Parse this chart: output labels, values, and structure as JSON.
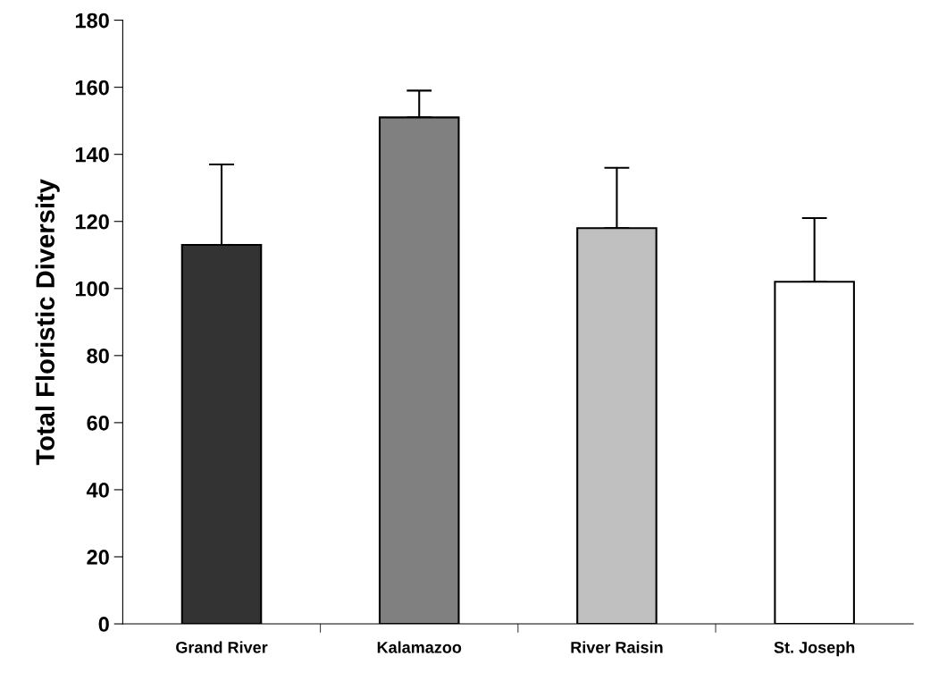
{
  "chart_data": {
    "type": "bar",
    "ylabel": "Total Floristic Diversity",
    "categories": [
      "Grand River",
      "Kalamazoo",
      "River Raisin",
      "St. Joseph"
    ],
    "values": [
      113,
      151,
      118,
      102
    ],
    "colors": [
      "#333333",
      "#808080",
      "#c0c0c0",
      "#ffffff"
    ],
    "errors": [
      [
        113,
        137
      ],
      [
        151,
        159
      ],
      [
        118,
        136
      ],
      [
        102,
        121
      ]
    ],
    "ylim": [
      0,
      180
    ],
    "yticks": [
      0,
      20,
      40,
      60,
      80,
      100,
      120,
      140,
      160,
      180
    ],
    "grid": false,
    "legend": false
  }
}
